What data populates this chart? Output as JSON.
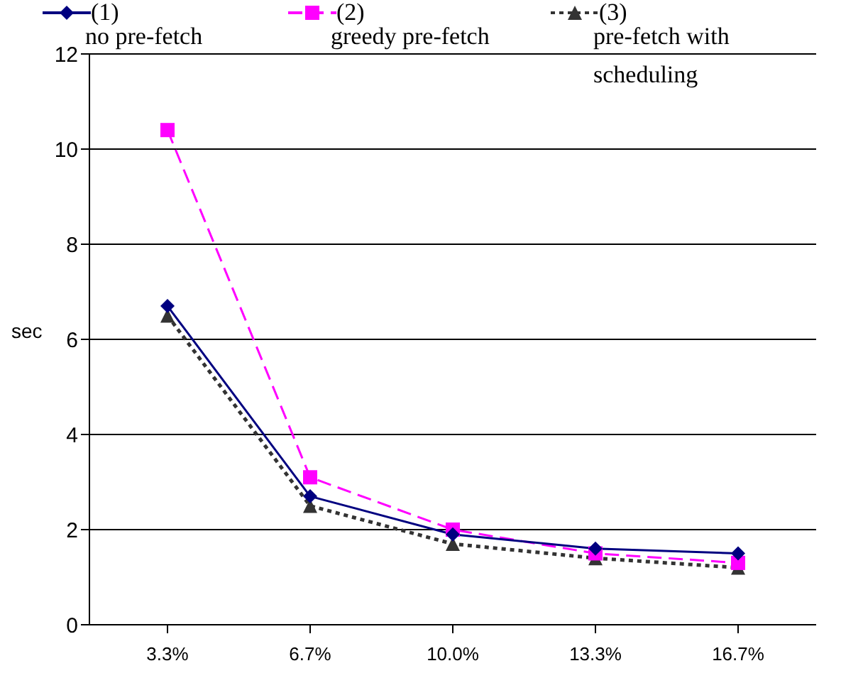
{
  "chart_data": {
    "type": "line",
    "ylabel": "sec",
    "categories": [
      "3.3%",
      "6.7%",
      "10.0%",
      "13.3%",
      "16.7%"
    ],
    "series": [
      {
        "name": "(1)",
        "color": "#000080",
        "marker": "diamond",
        "line_style": "solid",
        "values": [
          6.7,
          2.7,
          1.9,
          1.6,
          1.5
        ]
      },
      {
        "name": "(2)",
        "color": "#ff00ff",
        "marker": "square",
        "line_style": "dashed",
        "values": [
          10.4,
          3.1,
          2.0,
          1.5,
          1.3
        ]
      },
      {
        "name": "(3)",
        "color": "#333333",
        "marker": "triangle",
        "line_style": "dotted",
        "values": [
          6.5,
          2.5,
          1.7,
          1.4,
          1.2
        ]
      }
    ],
    "annotations": [
      "no pre-fetch",
      "greedy pre-fetch",
      "pre-fetch with scheduling"
    ],
    "ylim": [
      0,
      12
    ],
    "yticks": [
      0,
      2,
      4,
      6,
      8,
      10,
      12
    ],
    "grid": "y",
    "legend": "top"
  }
}
